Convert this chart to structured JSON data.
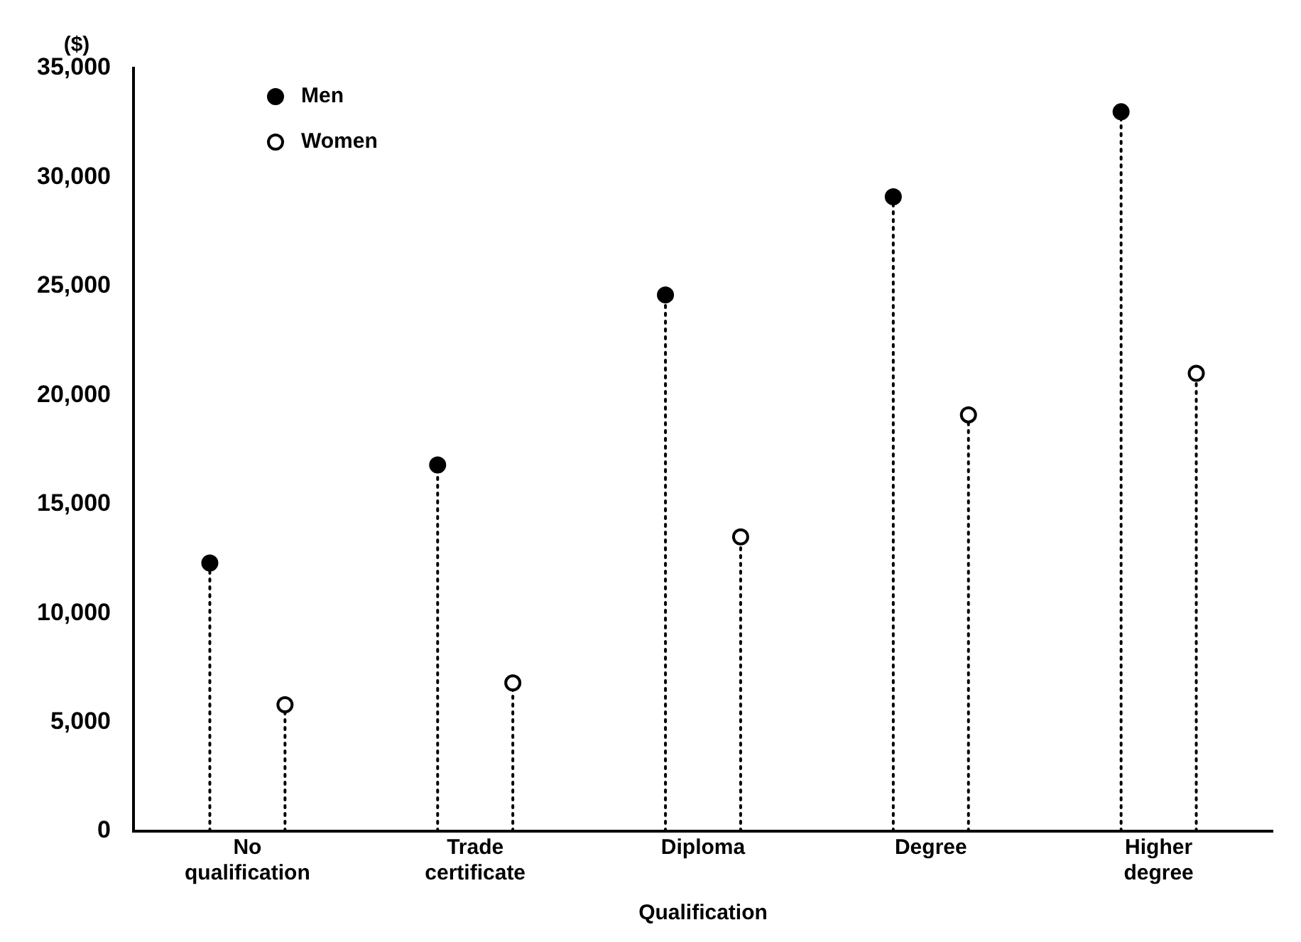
{
  "chart_data": {
    "type": "lollipop",
    "ylabel": "($)",
    "xlabel": "Qualification",
    "categories": [
      "No qualification",
      "Trade certificate",
      "Diploma",
      "Degree",
      "Higher degree"
    ],
    "series": [
      {
        "name": "Men",
        "color": "#000000",
        "values": [
          12300,
          16800,
          24600,
          29100,
          33000
        ]
      },
      {
        "name": "Women",
        "color": "#ffffff",
        "values": [
          5800,
          6800,
          13500,
          19100,
          21000
        ]
      }
    ],
    "ylim": [
      0,
      35000
    ],
    "yticks": [
      {
        "value": 0,
        "label": "0"
      },
      {
        "value": 5000,
        "label": "5,000"
      },
      {
        "value": 10000,
        "label": "10,000"
      },
      {
        "value": 15000,
        "label": "15,000"
      },
      {
        "value": 20000,
        "label": "20,000"
      },
      {
        "value": 25000,
        "label": "25,000"
      },
      {
        "value": 30000,
        "label": "30,000"
      },
      {
        "value": 35000,
        "label": "35,000"
      }
    ],
    "grid": false,
    "legend": "top left",
    "marker": "circle",
    "line_style": "dotted"
  }
}
